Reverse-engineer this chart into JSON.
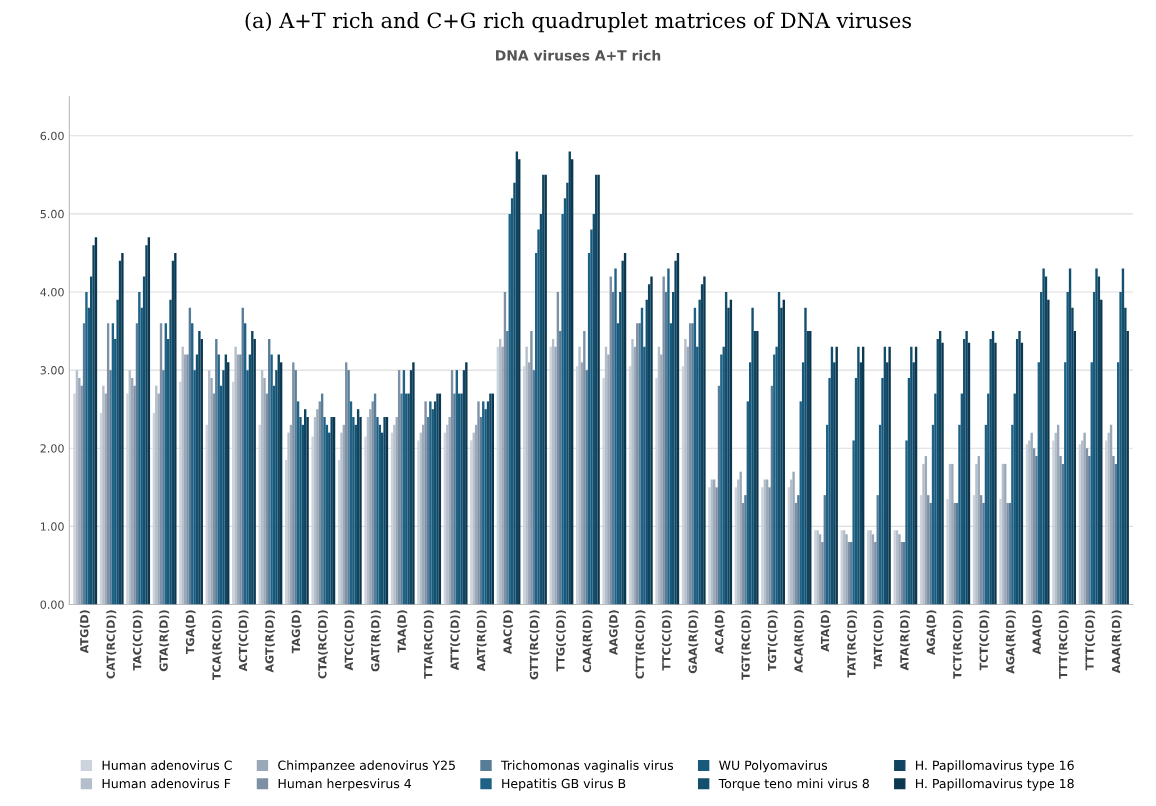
{
  "chart_data": {
    "type": "bar",
    "title": "(a) A+T rich and C+G rich quadruplet matrices of DNA viruses",
    "subtitle": "DNA viruses A+T rich",
    "categories": [
      "ATG(D)",
      "CAT(RC(D))",
      "TAC(C(D))",
      "GTA(R(D))",
      "TGA(D)",
      "TCA(RC(D))",
      "ACT(C(D))",
      "AGT(R(D))",
      "TAG(D)",
      "CTA(RC(D))",
      "ATC(C(D))",
      "GAT(R(D))",
      "TAA(D)",
      "TTA(RC(D))",
      "ATT(C(D))",
      "AAT(R(D))",
      "AAC(D)",
      "GTT(RC(D))",
      "TTG(C(D))",
      "CAA(R(D))",
      "AAG(D)",
      "CTT(RC(D))",
      "TTC(C(D))",
      "GAA(R(D))",
      "ACA(D)",
      "TGT(RC(D))",
      "TGT(C(D))",
      "ACA(R(D))",
      "ATA(D)",
      "TAT(RC(D))",
      "TAT(C(D))",
      "ATA(R(D))",
      "AGA(D)",
      "TCT(RC(D))",
      "TCT(C(D))",
      "AGA(R(D))",
      "AAA(D)",
      "TTT(RC(D))",
      "TTT(C(D))",
      "AAA(R(D))"
    ],
    "series": [
      {
        "name": "Human adenovirus C",
        "color": "#cdd3dc",
        "values": [
          2.7,
          2.45,
          2.7,
          2.45,
          2.85,
          2.3,
          2.85,
          2.3,
          1.85,
          2.15,
          1.85,
          2.15,
          2.2,
          2.1,
          2.2,
          2.1,
          3.3,
          3.05,
          3.3,
          3.05,
          2.9,
          3.05,
          2.9,
          3.05,
          1.5,
          1.5,
          1.5,
          1.5,
          0.95,
          0.95,
          0.95,
          0.95,
          1.4,
          1.35,
          1.4,
          1.35,
          2.05,
          2.1,
          2.05,
          2.1
        ]
      },
      {
        "name": "Human adenovirus F",
        "color": "#b5bfcb",
        "values": [
          3.0,
          2.8,
          3.0,
          2.8,
          3.3,
          3.0,
          3.3,
          3.0,
          2.2,
          2.4,
          2.2,
          2.4,
          2.3,
          2.2,
          2.3,
          2.2,
          3.4,
          3.3,
          3.4,
          3.3,
          3.3,
          3.4,
          3.3,
          3.4,
          1.6,
          1.6,
          1.6,
          1.6,
          0.95,
          0.95,
          0.95,
          0.95,
          1.8,
          1.8,
          1.8,
          1.8,
          2.1,
          2.2,
          2.1,
          2.2
        ]
      },
      {
        "name": "Chimpanzee adenovirus Y25",
        "color": "#9aa8b8",
        "values": [
          2.9,
          2.7,
          2.9,
          2.7,
          3.2,
          2.9,
          3.2,
          2.9,
          2.3,
          2.5,
          2.3,
          2.5,
          2.4,
          2.3,
          2.4,
          2.3,
          3.3,
          3.1,
          3.3,
          3.1,
          3.2,
          3.3,
          3.2,
          3.3,
          1.6,
          1.7,
          1.6,
          1.7,
          0.9,
          0.9,
          0.9,
          0.9,
          1.9,
          1.8,
          1.9,
          1.8,
          2.2,
          2.3,
          2.2,
          2.3
        ]
      },
      {
        "name": "Human herpesvirus 4",
        "color": "#7d90a5",
        "values": [
          2.8,
          3.6,
          2.8,
          3.6,
          3.2,
          2.7,
          3.2,
          2.7,
          3.1,
          2.6,
          3.1,
          2.6,
          3.0,
          2.6,
          3.0,
          2.6,
          4.0,
          3.5,
          4.0,
          3.5,
          4.2,
          3.6,
          4.2,
          3.6,
          1.5,
          1.3,
          1.5,
          1.3,
          0.8,
          0.8,
          0.8,
          0.8,
          1.4,
          1.3,
          1.4,
          1.3,
          2.0,
          1.9,
          2.0,
          1.9
        ]
      },
      {
        "name": "Trichomonas vaginalis virus",
        "color": "#587d99",
        "values": [
          3.6,
          3.0,
          3.6,
          3.0,
          3.8,
          3.4,
          3.8,
          3.4,
          3.0,
          2.7,
          3.0,
          2.7,
          2.7,
          2.4,
          2.7,
          2.4,
          3.5,
          3.0,
          3.5,
          3.0,
          4.0,
          3.6,
          4.0,
          3.6,
          2.8,
          1.4,
          2.8,
          1.4,
          1.4,
          0.8,
          1.4,
          0.8,
          1.3,
          1.3,
          1.3,
          1.3,
          1.9,
          1.8,
          1.9,
          1.8
        ]
      },
      {
        "name": "Hepatitis GB virus B",
        "color": "#1f6286",
        "values": [
          4.0,
          3.6,
          4.0,
          3.6,
          3.6,
          3.2,
          3.6,
          3.2,
          2.6,
          2.4,
          2.6,
          2.4,
          3.0,
          2.6,
          3.0,
          2.6,
          5.0,
          4.5,
          5.0,
          4.5,
          4.3,
          3.8,
          4.3,
          3.8,
          3.2,
          2.6,
          3.2,
          2.6,
          2.3,
          2.1,
          2.3,
          2.1,
          2.3,
          2.3,
          2.3,
          2.3,
          3.1,
          3.1,
          3.1,
          3.1
        ]
      },
      {
        "name": "WU Polyomavirus",
        "color": "#185a7c",
        "values": [
          3.8,
          3.4,
          3.8,
          3.4,
          3.0,
          2.8,
          3.0,
          2.8,
          2.4,
          2.3,
          2.4,
          2.3,
          2.7,
          2.5,
          2.7,
          2.5,
          5.2,
          4.8,
          5.2,
          4.8,
          3.6,
          3.3,
          3.6,
          3.3,
          3.3,
          3.1,
          3.3,
          3.1,
          2.9,
          2.9,
          2.9,
          2.9,
          2.7,
          2.7,
          2.7,
          2.7,
          4.0,
          4.0,
          4.0,
          4.0
        ]
      },
      {
        "name": "Torque teno mini virus 8",
        "color": "#134f6e",
        "values": [
          4.2,
          3.9,
          4.2,
          3.9,
          3.2,
          3.0,
          3.2,
          3.0,
          2.3,
          2.2,
          2.3,
          2.2,
          2.7,
          2.6,
          2.7,
          2.6,
          5.4,
          5.0,
          5.4,
          5.0,
          4.0,
          3.9,
          4.0,
          3.9,
          4.0,
          3.8,
          4.0,
          3.8,
          3.3,
          3.3,
          3.3,
          3.3,
          3.4,
          3.4,
          3.4,
          3.4,
          4.3,
          4.3,
          4.3,
          4.3
        ]
      },
      {
        "name": "H. Papillomavirus type 16",
        "color": "#0f4560",
        "values": [
          4.6,
          4.4,
          4.6,
          4.4,
          3.5,
          3.2,
          3.5,
          3.2,
          2.5,
          2.4,
          2.5,
          2.4,
          3.0,
          2.7,
          3.0,
          2.7,
          5.8,
          5.5,
          5.8,
          5.5,
          4.4,
          4.1,
          4.4,
          4.1,
          3.8,
          3.5,
          3.8,
          3.5,
          3.1,
          3.1,
          3.1,
          3.1,
          3.5,
          3.5,
          3.5,
          3.5,
          4.2,
          3.8,
          4.2,
          3.8
        ]
      },
      {
        "name": "H. Papillomavirus type 18",
        "color": "#0b3850",
        "values": [
          4.7,
          4.5,
          4.7,
          4.5,
          3.4,
          3.1,
          3.4,
          3.1,
          2.4,
          2.4,
          2.4,
          2.4,
          3.1,
          2.7,
          3.1,
          2.7,
          5.7,
          5.5,
          5.7,
          5.5,
          4.5,
          4.2,
          4.5,
          4.2,
          3.9,
          3.5,
          3.9,
          3.5,
          3.3,
          3.3,
          3.3,
          3.3,
          3.35,
          3.35,
          3.35,
          3.35,
          3.9,
          3.5,
          3.9,
          3.5
        ]
      }
    ],
    "ylim": [
      0,
      6.5
    ],
    "yticks": [
      {
        "value": 0,
        "label": "0.00"
      },
      {
        "value": 1,
        "label": "1.00"
      },
      {
        "value": 2,
        "label": "2.00"
      },
      {
        "value": 3,
        "label": "3.00"
      },
      {
        "value": 4,
        "label": "4.00"
      },
      {
        "value": 5,
        "label": "5.00"
      },
      {
        "value": 6,
        "label": "6.00"
      }
    ],
    "grid": "y",
    "legend": "bottom"
  }
}
